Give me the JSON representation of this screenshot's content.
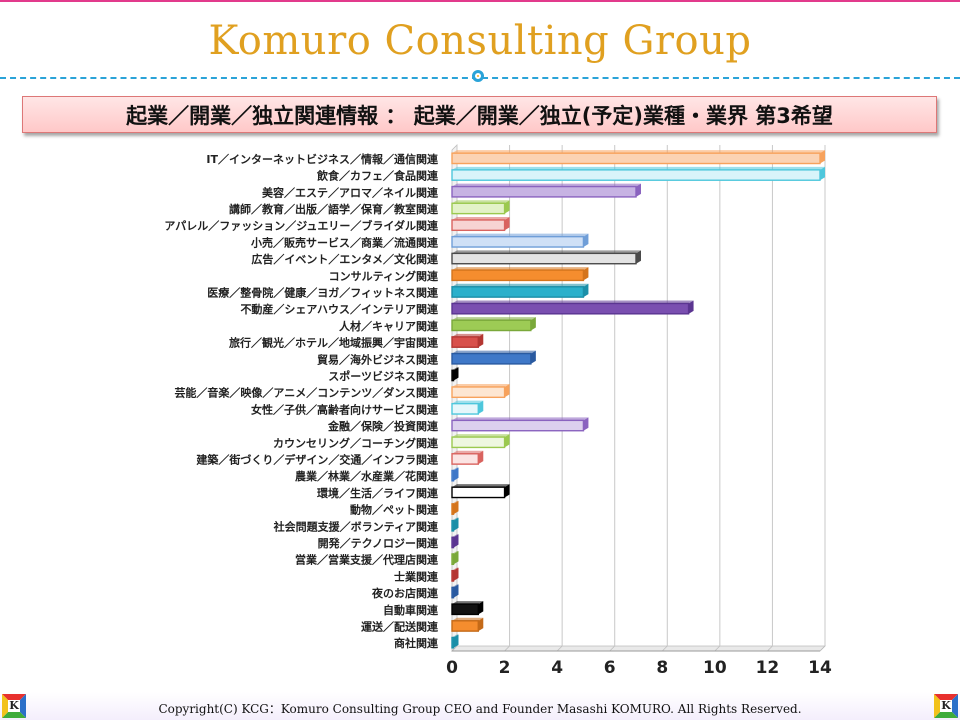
{
  "header": {
    "title": "Komuro Consulting Group"
  },
  "banner": {
    "text": "起業／開業／独立関連情報 ： 起業／開業／独立(予定)業種・業界 第3希望"
  },
  "footer": {
    "copyright": "Copyright(C) KCG：Komuro Consulting Group  CEO and Founder  Masashi KOMURO. All Rights Reserved."
  },
  "logo": {
    "letter": "K"
  },
  "chart_data": {
    "type": "bar",
    "orientation": "horizontal",
    "categories": [
      "IT／インターネットビジネス／情報／通信関連",
      "飲食／カフェ／食品関連",
      "美容／エステ／アロマ／ネイル関連",
      "講師／教育／出版／語学／保育／教室関連",
      "アパレル／ファッション／ジュエリー／ブライダル関連",
      "小売／販売サービス／商業／流通関連",
      "広告／イベント／エンタメ／文化関連",
      "コンサルティング関連",
      "医療／整骨院／健康／ヨガ／フィットネス関連",
      "不動産／シェアハウス／インテリア関連",
      "人材／キャリア関連",
      "旅行／観光／ホテル／地域振興／宇宙関連",
      "貿易／海外ビジネス関連",
      "スポーツビジネス関連",
      "芸能／音楽／映像／アニメ／コンテンツ／ダンス関連",
      "女性／子供／高齢者向けサービス関連",
      "金融／保険／投資関連",
      "カウンセリング／コーチング関連",
      "建築／街づくり／デザイン／交通／インフラ関連",
      "農業／林業／水産業／花関連",
      "環境／生活／ライフ関連",
      "動物／ペット関連",
      "社会問題支援／ボランティア関連",
      "開発／テクノロジー関連",
      "営業／営業支援／代理店関連",
      "士業関連",
      "夜のお店関連",
      "自動車関連",
      "運送／配送関連",
      "商社関連"
    ],
    "values": [
      14,
      14,
      7,
      2,
      2,
      5,
      7,
      5,
      5,
      9,
      3,
      1,
      3,
      0,
      2,
      1,
      5,
      2,
      1,
      0,
      2,
      0,
      0,
      0,
      0,
      0,
      0,
      1,
      1,
      0
    ],
    "bar_styles": [
      {
        "fill": "#fbd3b4",
        "edge": "#f7a25c"
      },
      {
        "fill": "#d8f4fa",
        "edge": "#4ec7dc"
      },
      {
        "fill": "#c7b3e3",
        "edge": "#8a63bf"
      },
      {
        "fill": "#e3f2c8",
        "edge": "#9bc94f"
      },
      {
        "fill": "#f7d4d2",
        "edge": "#d9635f"
      },
      {
        "fill": "#cfe0f6",
        "edge": "#6f9ed8"
      },
      {
        "fill": "#e3e3e3",
        "edge": "#4a4a4a"
      },
      {
        "fill": "#f58d2e",
        "edge": "#d4741c"
      },
      {
        "fill": "#2bb0cb",
        "edge": "#1b8fa8"
      },
      {
        "fill": "#7a4fb0",
        "edge": "#5b3591"
      },
      {
        "fill": "#9dcb55",
        "edge": "#7aa83a"
      },
      {
        "fill": "#d8504b",
        "edge": "#b43632"
      },
      {
        "fill": "#3f78c8",
        "edge": "#2a5aa0"
      },
      {
        "fill": "#111111",
        "edge": "#000000"
      },
      {
        "fill": "#fde6d2",
        "edge": "#f7a25c"
      },
      {
        "fill": "#e6f7fb",
        "edge": "#4ec7dc"
      },
      {
        "fill": "#dcd0ee",
        "edge": "#8a63bf"
      },
      {
        "fill": "#eef7e0",
        "edge": "#9bc94f"
      },
      {
        "fill": "#fbe4e3",
        "edge": "#d9635f"
      },
      {
        "fill": "#6f9ed8",
        "edge": "#3f78c8"
      },
      {
        "fill": "#ffffff",
        "edge": "#000000"
      },
      {
        "fill": "#f58d2e",
        "edge": "#d4741c"
      },
      {
        "fill": "#2bb0cb",
        "edge": "#1b8fa8"
      },
      {
        "fill": "#7a4fb0",
        "edge": "#5b3591"
      },
      {
        "fill": "#9dcb55",
        "edge": "#7aa83a"
      },
      {
        "fill": "#d8504b",
        "edge": "#b43632"
      },
      {
        "fill": "#3f78c8",
        "edge": "#2a5aa0"
      },
      {
        "fill": "#111111",
        "edge": "#000000"
      },
      {
        "fill": "#f58d2e",
        "edge": "#c46a18"
      },
      {
        "fill": "#2bb0cb",
        "edge": "#1b8fa8"
      }
    ],
    "xlim": [
      0,
      14
    ],
    "xticks": [
      "0",
      "2",
      "4",
      "6",
      "8",
      "10",
      "12",
      "14"
    ],
    "grid": true,
    "colors": {
      "title": "#e0a020",
      "divider": "#2aa3d8",
      "grid": "#c8c8c8"
    }
  }
}
